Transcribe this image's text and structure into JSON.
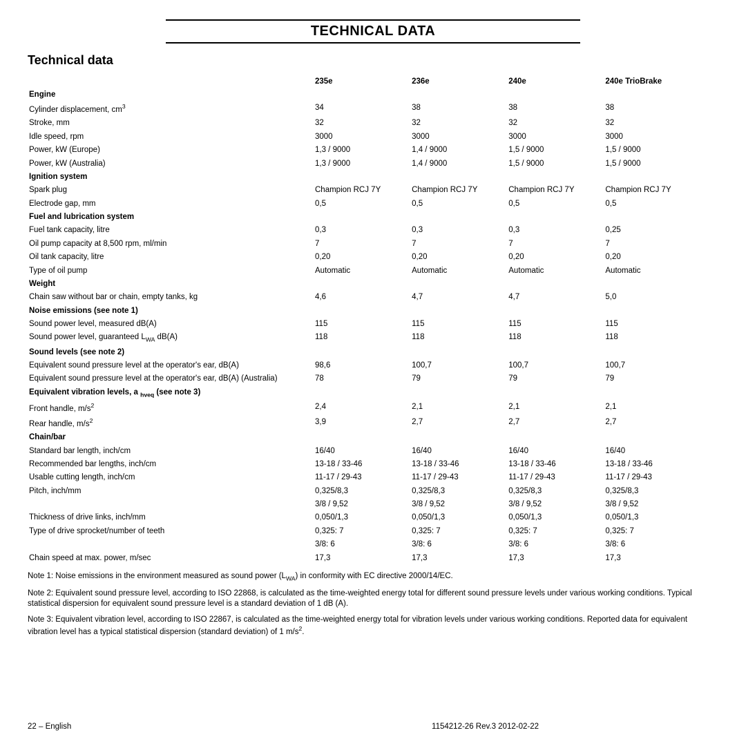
{
  "page": {
    "banner_title": "TECHNICAL DATA",
    "section_heading": "Technical data",
    "footer_left": "22 – English",
    "footer_right": "1154212-26 Rev.3 2012-02-22"
  },
  "columns": {
    "c1": "235e",
    "c2": "236e",
    "c3": "240e",
    "c4": "240e TrioBrake"
  },
  "sections": {
    "engine": "Engine",
    "ignition": "Ignition system",
    "fuel": "Fuel and lubrication system",
    "weight": "Weight",
    "noise": "Noise emissions (see note 1)",
    "sound": "Sound levels (see note 2)",
    "vib_prefix": "Equivalent vibration levels, a ",
    "vib_sub": "hveq",
    "vib_suffix": " (see note 3)",
    "chainbar": "Chain/bar"
  },
  "rows": {
    "cyl": {
      "label_pre": "Cylinder displacement, cm",
      "sup": "3",
      "v": [
        "34",
        "38",
        "38",
        "38"
      ]
    },
    "stroke": {
      "label": "Stroke, mm",
      "v": [
        "32",
        "32",
        "32",
        "32"
      ]
    },
    "idle": {
      "label": "Idle speed, rpm",
      "v": [
        "3000",
        "3000",
        "3000",
        "3000"
      ]
    },
    "pwr_eu": {
      "label": "Power, kW (Europe)",
      "v": [
        "1,3 / 9000",
        "1,4 / 9000",
        "1,5 / 9000",
        "1,5 / 9000"
      ]
    },
    "pwr_au": {
      "label": "Power, kW (Australia)",
      "v": [
        "1,3 / 9000",
        "1,4 / 9000",
        "1,5 / 9000",
        "1,5 / 9000"
      ]
    },
    "spark": {
      "label": "Spark plug",
      "v": [
        "Champion RCJ 7Y",
        "Champion RCJ 7Y",
        "Champion RCJ 7Y",
        "Champion RCJ 7Y"
      ]
    },
    "gap": {
      "label": "Electrode gap, mm",
      "v": [
        "0,5",
        "0,5",
        "0,5",
        "0,5"
      ]
    },
    "ftank": {
      "label": "Fuel tank capacity, litre",
      "v": [
        "0,3",
        "0,3",
        "0,3",
        "0,25"
      ]
    },
    "oilpump": {
      "label": "Oil pump capacity at 8,500 rpm, ml/min",
      "v": [
        "7",
        "7",
        "7",
        "7"
      ]
    },
    "oiltank": {
      "label": "Oil tank capacity, litre",
      "v": [
        "0,20",
        "0,20",
        "0,20",
        "0,20"
      ]
    },
    "pumptype": {
      "label": "Type of oil pump",
      "v": [
        "Automatic",
        "Automatic",
        "Automatic",
        "Automatic"
      ]
    },
    "wt": {
      "label": "Chain saw without bar or chain, empty tanks, kg",
      "v": [
        "4,6",
        "4,7",
        "4,7",
        "5,0"
      ]
    },
    "spl_m": {
      "label": "Sound power level, measured dB(A)",
      "v": [
        "115",
        "115",
        "115",
        "115"
      ]
    },
    "spl_g": {
      "label_pre": "Sound power level, guaranteed L",
      "sub": "WA",
      "label_post": " dB(A)",
      "v": [
        "118",
        "118",
        "118",
        "118"
      ]
    },
    "eq_spl": {
      "label": "Equivalent sound pressure level at the operator's ear, dB(A)",
      "v": [
        "98,6",
        "100,7",
        "100,7",
        "100,7"
      ]
    },
    "eq_spl_au": {
      "label": "Equivalent sound pressure level at the operator's ear, dB(A) (Australia)",
      "v": [
        "78",
        "79",
        "79",
        "79"
      ]
    },
    "fh": {
      "label_pre": "Front handle, m/s",
      "sup": "2",
      "v": [
        "2,4",
        "2,1",
        "2,1",
        "2,1"
      ]
    },
    "rh": {
      "label_pre": "Rear handle, m/s",
      "sup": "2",
      "v": [
        "3,9",
        "2,7",
        "2,7",
        "2,7"
      ]
    },
    "sbar": {
      "label": "Standard bar length, inch/cm",
      "v": [
        "16/40",
        "16/40",
        "16/40",
        "16/40"
      ]
    },
    "rbar": {
      "label": "Recommended bar lengths, inch/cm",
      "v": [
        "13-18 / 33-46",
        "13-18 / 33-46",
        "13-18 / 33-46",
        "13-18 / 33-46"
      ]
    },
    "ucut": {
      "label": "Usable cutting length, inch/cm",
      "v": [
        "11-17 / 29-43",
        "11-17 / 29-43",
        "11-17 / 29-43",
        "11-17 / 29-43"
      ]
    },
    "pitch1": {
      "label": "Pitch, inch/mm",
      "v": [
        "0,325/8,3",
        "0,325/8,3",
        "0,325/8,3",
        "0,325/8,3"
      ]
    },
    "pitch2": {
      "label": "",
      "v": [
        "3/8 / 9,52",
        "3/8 / 9,52",
        "3/8 / 9,52",
        "3/8 / 9,52"
      ]
    },
    "thick": {
      "label": "Thickness of drive links, inch/mm",
      "v": [
        "0,050/1,3",
        "0,050/1,3",
        "0,050/1,3",
        "0,050/1,3"
      ]
    },
    "spr1": {
      "label": "Type of drive sprocket/number of teeth",
      "v": [
        "0,325: 7",
        "0,325: 7",
        "0,325: 7",
        "0,325: 7"
      ]
    },
    "spr2": {
      "label": "",
      "v": [
        "3/8: 6",
        "3/8: 6",
        "3/8: 6",
        "3/8: 6"
      ]
    },
    "cspd": {
      "label": "Chain speed at max. power, m/sec",
      "v": [
        "17,3",
        "17,3",
        "17,3",
        "17,3"
      ]
    }
  },
  "notes": {
    "n1_pre": "Note 1: Noise emissions in the environment measured as sound power (L",
    "n1_sub": "WA",
    "n1_post": ") in conformity with EC directive 2000/14/EC.",
    "n2": "Note 2: Equivalent sound pressure level, according to ISO 22868, is calculated as the time-weighted energy total for different sound pressure levels under various working conditions. Typical statistical dispersion for equivalent sound pressure level is a standard deviation of 1 dB (A).",
    "n3_pre": "Note 3: Equivalent vibration level, according to ISO 22867, is calculated as the time-weighted energy total for vibration levels under various working conditions. Reported data for equivalent vibration level has a typical statistical dispersion (standard deviation) of 1 m/s",
    "n3_sup": "2",
    "n3_post": "."
  },
  "style": {
    "font_size_body": 11.5,
    "font_size_title": 20,
    "font_size_heading": 18,
    "text_color": "#000000",
    "background_color": "#ffffff",
    "rule_color": "#000000"
  }
}
